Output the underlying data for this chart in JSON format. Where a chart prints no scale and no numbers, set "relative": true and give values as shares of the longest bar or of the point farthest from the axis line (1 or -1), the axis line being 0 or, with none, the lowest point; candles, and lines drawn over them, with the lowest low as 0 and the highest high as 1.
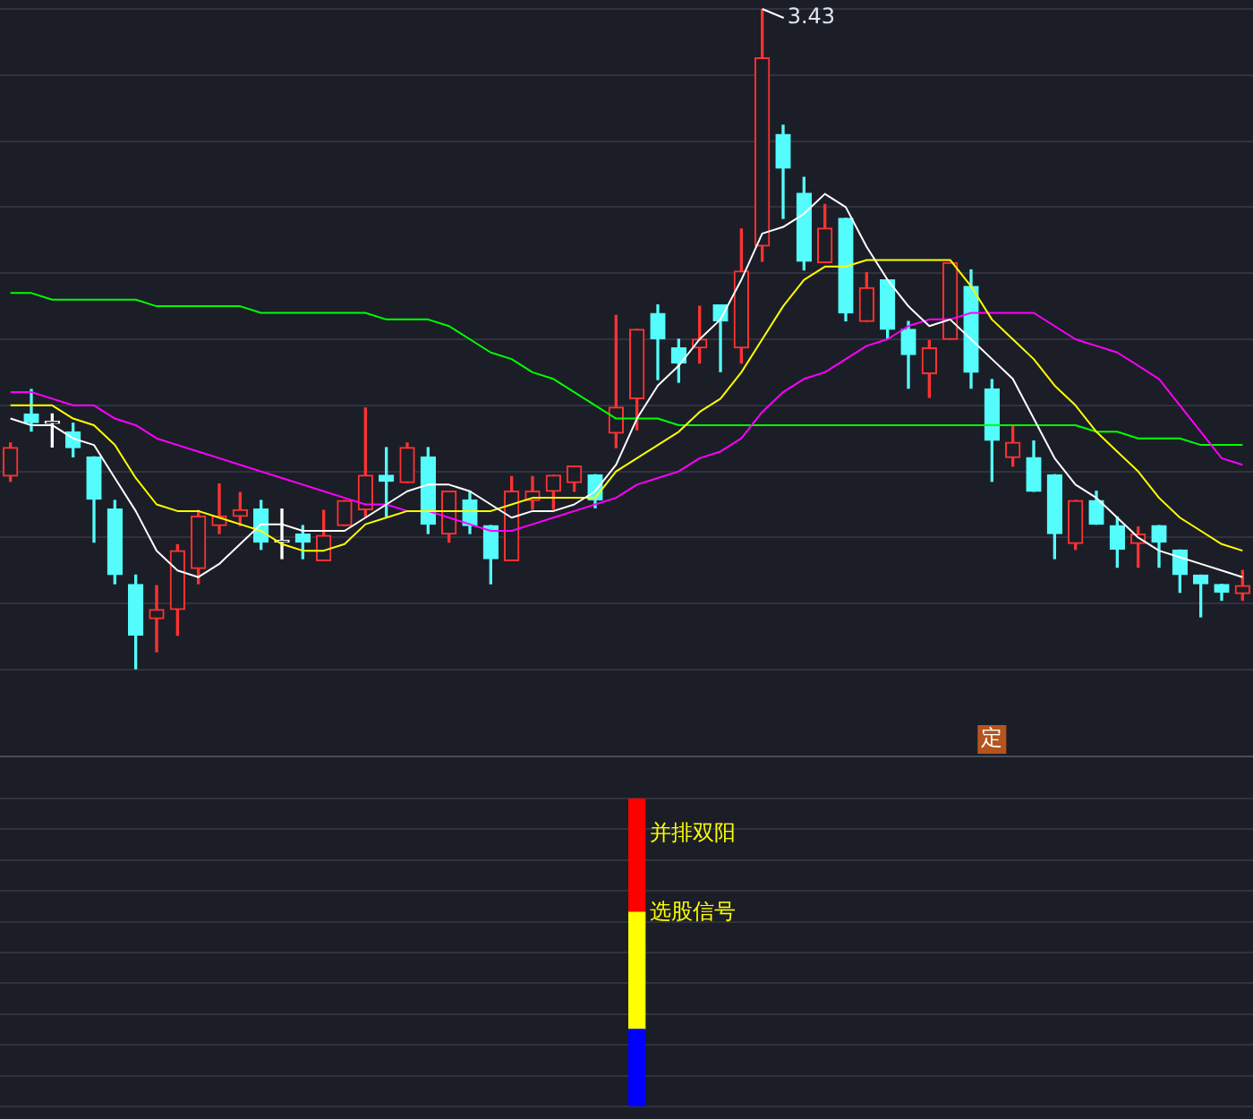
{
  "chart_data": [
    {
      "type": "candlestick",
      "relative": true,
      "grid": true,
      "categories": [
        null,
        null,
        null,
        null,
        null,
        null,
        null,
        null,
        null,
        null,
        null,
        null,
        null,
        null,
        null,
        null,
        null,
        null,
        null,
        null,
        null,
        null,
        null,
        null,
        null,
        null,
        null,
        null,
        null,
        null,
        null,
        null,
        null,
        null,
        null,
        null,
        null,
        null,
        null,
        null,
        null,
        null,
        null,
        null,
        null,
        null,
        null,
        null,
        null,
        null,
        null,
        null,
        null,
        null,
        null,
        null,
        null,
        null,
        null,
        null
      ],
      "annotations": [
        "3.43",
        "定"
      ],
      "series": [
        {
          "type": "candlestick",
          "ohlc": [
            [
              0.293,
              0.343,
              0.285,
              0.336
            ],
            [
              0.387,
              0.424,
              0.361,
              0.374
            ],
            [
              0.373,
              0.387,
              0.337,
              0.373
            ],
            [
              0.36,
              0.373,
              0.322,
              0.336
            ],
            [
              0.322,
              0.322,
              0.193,
              0.258
            ],
            [
              0.243,
              0.256,
              0.13,
              0.144
            ],
            [
              0.129,
              0.143,
              0,
              0.052
            ],
            [
              0.077,
              0.127,
              0.027,
              0.091
            ],
            [
              0.091,
              0.189,
              0.052,
              0.18
            ],
            [
              0.153,
              0.241,
              0.13,
              0.232
            ],
            [
              0.218,
              0.281,
              0.206,
              0.232
            ],
            [
              0.232,
              0.268,
              0.218,
              0.242
            ],
            [
              0.243,
              0.256,
              0.182,
              0.193
            ],
            [
              0.193,
              0.243,
              0.168,
              0.193
            ],
            [
              0.205,
              0.218,
              0.168,
              0.193
            ],
            [
              0.165,
              0.241,
              0.165,
              0.203
            ],
            [
              0.218,
              0.256,
              0.218,
              0.256
            ],
            [
              0.242,
              0.396,
              0.232,
              0.294
            ],
            [
              0.294,
              0.336,
              0.232,
              0.285
            ],
            [
              0.283,
              0.343,
              0.283,
              0.336
            ],
            [
              0.322,
              0.336,
              0.206,
              0.22
            ],
            [
              0.205,
              0.27,
              0.193,
              0.27
            ],
            [
              0.257,
              0.27,
              0.206,
              0.218
            ],
            [
              0.218,
              0.218,
              0.13,
              0.168
            ],
            [
              0.165,
              0.292,
              0.165,
              0.27
            ],
            [
              0.256,
              0.292,
              0.243,
              0.27
            ],
            [
              0.27,
              0.294,
              0.243,
              0.294
            ],
            [
              0.283,
              0.308,
              0.27,
              0.308
            ],
            [
              0.295,
              0.295,
              0.245,
              0.257
            ],
            [
              0.358,
              0.536,
              0.336,
              0.397
            ],
            [
              0.41,
              0.515,
              0.363,
              0.515
            ],
            [
              0.539,
              0.552,
              0.439,
              0.501
            ],
            [
              0.487,
              0.5,
              0.435,
              0.464
            ],
            [
              0.487,
              0.55,
              0.464,
              0.5
            ],
            [
              0.552,
              0.552,
              0.451,
              0.528
            ],
            [
              0.487,
              0.667,
              0.464,
              0.603
            ],
            [
              0.641,
              1,
              0.618,
              0.926
            ],
            [
              0.81,
              0.824,
              0.683,
              0.759
            ],
            [
              0.721,
              0.745,
              0.605,
              0.618
            ],
            [
              0.616,
              0.704,
              0.616,
              0.668
            ],
            [
              0.683,
              0.683,
              0.528,
              0.54
            ],
            [
              0.527,
              0.601,
              0.527,
              0.578
            ],
            [
              0.59,
              0.59,
              0.502,
              0.515
            ],
            [
              0.515,
              0.527,
              0.426,
              0.477
            ],
            [
              0.448,
              0.498,
              0.412,
              0.487
            ],
            [
              0.5,
              0.616,
              0.5,
              0.616
            ],
            [
              0.58,
              0.605,
              0.426,
              0.45
            ],
            [
              0.425,
              0.439,
              0.285,
              0.347
            ],
            [
              0.321,
              0.37,
              0.308,
              0.344
            ],
            [
              0.321,
              0.346,
              0.27,
              0.27
            ],
            [
              0.295,
              0.295,
              0.168,
              0.206
            ],
            [
              0.191,
              0.256,
              0.182,
              0.256
            ],
            [
              0.256,
              0.27,
              0.22,
              0.22
            ],
            [
              0.218,
              0.231,
              0.155,
              0.182
            ],
            [
              0.191,
              0.216,
              0.155,
              0.205
            ],
            [
              0.218,
              0.218,
              0.155,
              0.193
            ],
            [
              0.181,
              0.181,
              0.117,
              0.144
            ],
            [
              0.143,
              0.143,
              0.08,
              0.13
            ],
            [
              0.129,
              0.129,
              0.105,
              0.117
            ],
            [
              0.115,
              0.15,
              0.105,
              0.127
            ]
          ],
          "colors": [
            "#ff3232",
            "#54fcfc",
            "#ffffff",
            "#54fcfc",
            "#54fcfc",
            "#54fcfc",
            "#54fcfc",
            "#ff3232",
            "#ff3232",
            "#ff3232",
            "#ff3232",
            "#ff3232",
            "#54fcfc",
            "#ffffff",
            "#54fcfc",
            "#ff3232",
            "#ff3232",
            "#ff3232",
            "#54fcfc",
            "#ff3232",
            "#54fcfc",
            "#ff3232",
            "#54fcfc",
            "#54fcfc",
            "#ff3232",
            "#ff3232",
            "#ff3232",
            "#ff3232",
            "#54fcfc",
            "#ff3232",
            "#ff3232",
            "#54fcfc",
            "#54fcfc",
            "#ff3232",
            "#54fcfc",
            "#ff3232",
            "#ff3232",
            "#54fcfc",
            "#54fcfc",
            "#ff3232",
            "#54fcfc",
            "#ff3232",
            "#54fcfc",
            "#54fcfc",
            "#ff3232",
            "#ff3232",
            "#54fcfc",
            "#54fcfc",
            "#ff3232",
            "#54fcfc",
            "#54fcfc",
            "#ff3232",
            "#54fcfc",
            "#54fcfc",
            "#ff3232",
            "#54fcfc",
            "#54fcfc",
            "#54fcfc",
            "#54fcfc",
            "#ff3232"
          ]
        },
        {
          "type": "line",
          "color": "#ffffff",
          "values": [
            0.38,
            0.37,
            0.37,
            0.35,
            0.34,
            0.29,
            0.24,
            0.18,
            0.15,
            0.14,
            0.16,
            0.19,
            0.22,
            0.22,
            0.21,
            0.21,
            0.21,
            0.23,
            0.25,
            0.27,
            0.28,
            0.28,
            0.27,
            0.25,
            0.23,
            0.24,
            0.24,
            0.25,
            0.27,
            0.31,
            0.38,
            0.43,
            0.46,
            0.5,
            0.53,
            0.59,
            0.66,
            0.67,
            0.69,
            0.72,
            0.7,
            0.64,
            0.59,
            0.55,
            0.52,
            0.53,
            0.5,
            0.47,
            0.44,
            0.38,
            0.32,
            0.28,
            0.26,
            0.23,
            0.2,
            0.18,
            0.17,
            0.16,
            0.15,
            0.14
          ]
        },
        {
          "type": "line",
          "color": "#ffff00",
          "values": [
            0.4,
            0.4,
            0.4,
            0.38,
            0.37,
            0.34,
            0.29,
            0.25,
            0.24,
            0.24,
            0.23,
            0.22,
            0.21,
            0.19,
            0.18,
            0.18,
            0.19,
            0.22,
            0.23,
            0.24,
            0.24,
            0.24,
            0.24,
            0.24,
            0.25,
            0.26,
            0.26,
            0.26,
            0.26,
            0.3,
            0.32,
            0.34,
            0.36,
            0.39,
            0.41,
            0.45,
            0.5,
            0.55,
            0.59,
            0.61,
            0.61,
            0.62,
            0.62,
            0.62,
            0.62,
            0.62,
            0.58,
            0.53,
            0.5,
            0.47,
            0.43,
            0.4,
            0.36,
            0.33,
            0.3,
            0.26,
            0.23,
            0.21,
            0.19,
            0.18
          ]
        },
        {
          "type": "line",
          "color": "#ff00ff",
          "values": [
            0.42,
            0.42,
            0.41,
            0.4,
            0.4,
            0.38,
            0.37,
            0.35,
            0.34,
            0.33,
            0.32,
            0.31,
            0.3,
            0.29,
            0.28,
            0.27,
            0.26,
            0.25,
            0.25,
            0.24,
            0.24,
            0.23,
            0.22,
            0.21,
            0.21,
            0.22,
            0.23,
            0.24,
            0.25,
            0.26,
            0.28,
            0.29,
            0.3,
            0.32,
            0.33,
            0.35,
            0.39,
            0.42,
            0.44,
            0.45,
            0.47,
            0.49,
            0.5,
            0.52,
            0.53,
            0.53,
            0.54,
            0.54,
            0.54,
            0.54,
            0.52,
            0.5,
            0.49,
            0.48,
            0.46,
            0.44,
            0.4,
            0.36,
            0.32,
            0.31
          ]
        },
        {
          "type": "line",
          "color": "#00ff00",
          "values": [
            0.57,
            0.57,
            0.56,
            0.56,
            0.56,
            0.56,
            0.56,
            0.55,
            0.55,
            0.55,
            0.55,
            0.55,
            0.54,
            0.54,
            0.54,
            0.54,
            0.54,
            0.54,
            0.53,
            0.53,
            0.53,
            0.52,
            0.5,
            0.48,
            0.47,
            0.45,
            0.44,
            0.42,
            0.4,
            0.38,
            0.38,
            0.38,
            0.37,
            0.37,
            0.37,
            0.37,
            0.37,
            0.37,
            0.37,
            0.37,
            0.37,
            0.37,
            0.37,
            0.37,
            0.37,
            0.37,
            0.37,
            0.37,
            0.37,
            0.37,
            0.37,
            0.37,
            0.36,
            0.36,
            0.35,
            0.35,
            0.35,
            0.34,
            0.34,
            0.34
          ]
        }
      ]
    },
    {
      "type": "bar",
      "relative": true,
      "stacked": true,
      "grid": true,
      "categories": [
        null,
        null,
        null,
        null,
        null,
        null,
        null,
        null,
        null,
        null,
        null,
        null,
        null,
        null,
        null,
        null,
        null,
        null,
        null,
        null,
        null,
        null,
        null,
        null,
        null,
        null,
        null,
        null,
        null,
        null,
        null,
        null,
        null,
        null,
        null,
        null,
        null,
        null,
        null,
        null,
        null,
        null,
        null,
        null,
        null,
        null,
        null,
        null,
        null,
        null,
        null,
        null,
        null,
        null,
        null,
        null,
        null,
        null,
        null,
        null
      ],
      "annotations": [
        "并排双阳",
        "选股信号"
      ],
      "series": [
        {
          "color": "#0000ff",
          "values": [
            null,
            null,
            null,
            null,
            null,
            null,
            null,
            null,
            null,
            null,
            null,
            null,
            null,
            null,
            null,
            null,
            null,
            null,
            null,
            null,
            null,
            null,
            null,
            null,
            null,
            null,
            null,
            null,
            null,
            null,
            0.25,
            null,
            null,
            null,
            null,
            null,
            null,
            null,
            null,
            null,
            null,
            null,
            null,
            null,
            null,
            null,
            null,
            null,
            null,
            null,
            null,
            null,
            null,
            null,
            null,
            null,
            null,
            null,
            null,
            null
          ]
        },
        {
          "color": "#ffff00",
          "values": [
            null,
            null,
            null,
            null,
            null,
            null,
            null,
            null,
            null,
            null,
            null,
            null,
            null,
            null,
            null,
            null,
            null,
            null,
            null,
            null,
            null,
            null,
            null,
            null,
            null,
            null,
            null,
            null,
            null,
            null,
            0.38,
            null,
            null,
            null,
            null,
            null,
            null,
            null,
            null,
            null,
            null,
            null,
            null,
            null,
            null,
            null,
            null,
            null,
            null,
            null,
            null,
            null,
            null,
            null,
            null,
            null,
            null,
            null,
            null,
            null
          ]
        },
        {
          "color": "#ff0000",
          "values": [
            null,
            null,
            null,
            null,
            null,
            null,
            null,
            null,
            null,
            null,
            null,
            null,
            null,
            null,
            null,
            null,
            null,
            null,
            null,
            null,
            null,
            null,
            null,
            null,
            null,
            null,
            null,
            null,
            null,
            null,
            0.37,
            null,
            null,
            null,
            null,
            null,
            null,
            null,
            null,
            null,
            null,
            null,
            null,
            null,
            null,
            null,
            null,
            null,
            null,
            null,
            null,
            null,
            null,
            null,
            null,
            null,
            null,
            null,
            null,
            null
          ]
        }
      ]
    }
  ]
}
